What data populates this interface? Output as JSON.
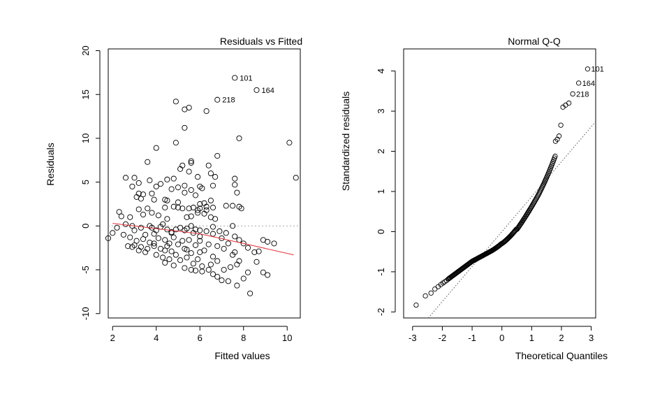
{
  "chart_data": [
    {
      "type": "scatter",
      "title": "Residuals vs Fitted",
      "xlabel": "Fitted values",
      "ylabel": "Residuals",
      "xlim": [
        1.8,
        10.6
      ],
      "ylim": [
        -10.5,
        20.2
      ],
      "xticks": [
        2,
        4,
        6,
        8,
        10
      ],
      "yticks": [
        -10,
        -5,
        0,
        5,
        10,
        15,
        20
      ],
      "reference_line": 0,
      "smooth_line": [
        [
          2.0,
          0.3
        ],
        [
          4.0,
          -0.3
        ],
        [
          6.0,
          -0.9
        ],
        [
          8.0,
          -2.0
        ],
        [
          10.3,
          -3.3
        ]
      ],
      "labeled_points": [
        {
          "label": "101",
          "x": 7.6,
          "y": 16.9
        },
        {
          "label": "164",
          "x": 8.6,
          "y": 15.5
        },
        {
          "label": "218",
          "x": 6.8,
          "y": 14.4
        }
      ],
      "points": [
        [
          7.6,
          16.9
        ],
        [
          8.6,
          15.5
        ],
        [
          6.8,
          14.4
        ],
        [
          4.9,
          14.2
        ],
        [
          5.5,
          13.5
        ],
        [
          5.3,
          13.3
        ],
        [
          6.3,
          13.1
        ],
        [
          5.3,
          11.2
        ],
        [
          7.8,
          10.0
        ],
        [
          10.1,
          9.5
        ],
        [
          4.9,
          9.5
        ],
        [
          4.0,
          8.9
        ],
        [
          6.8,
          8.0
        ],
        [
          3.6,
          7.3
        ],
        [
          5.6,
          7.4
        ],
        [
          5.6,
          7.2
        ],
        [
          5.2,
          6.9
        ],
        [
          5.1,
          6.5
        ],
        [
          6.4,
          6.9
        ],
        [
          5.5,
          6.2
        ],
        [
          6.5,
          6.0
        ],
        [
          2.6,
          5.5
        ],
        [
          3.0,
          5.5
        ],
        [
          3.7,
          5.2
        ],
        [
          4.8,
          5.4
        ],
        [
          5.9,
          5.6
        ],
        [
          6.7,
          5.6
        ],
        [
          7.6,
          5.4
        ],
        [
          10.4,
          5.5
        ],
        [
          3.2,
          4.9
        ],
        [
          4.0,
          4.5
        ],
        [
          4.2,
          4.8
        ],
        [
          4.5,
          5.3
        ],
        [
          4.7,
          4.2
        ],
        [
          5.0,
          4.4
        ],
        [
          5.3,
          4.6
        ],
        [
          6.0,
          4.5
        ],
        [
          6.1,
          4.3
        ],
        [
          6.6,
          4.6
        ],
        [
          7.6,
          4.7
        ],
        [
          2.9,
          4.5
        ],
        [
          3.2,
          3.7
        ],
        [
          3.4,
          3.6
        ],
        [
          3.8,
          3.7
        ],
        [
          5.3,
          3.8
        ],
        [
          5.8,
          3.5
        ],
        [
          5.6,
          4.1
        ],
        [
          7.7,
          3.8
        ],
        [
          3.1,
          3.3
        ],
        [
          3.3,
          3.1
        ],
        [
          3.9,
          3.0
        ],
        [
          4.4,
          3.0
        ],
        [
          4.5,
          2.9
        ],
        [
          6.5,
          2.9
        ],
        [
          5.0,
          2.7
        ],
        [
          6.0,
          2.5
        ],
        [
          6.2,
          2.6
        ],
        [
          6.0,
          2.0
        ],
        [
          6.3,
          2.2
        ],
        [
          7.2,
          2.3
        ],
        [
          7.5,
          2.3
        ],
        [
          7.8,
          2.2
        ],
        [
          7.9,
          2.0
        ],
        [
          3.2,
          1.9
        ],
        [
          3.6,
          2.0
        ],
        [
          4.4,
          2.1
        ],
        [
          4.8,
          2.2
        ],
        [
          5.0,
          2.1
        ],
        [
          5.2,
          2.0
        ],
        [
          5.5,
          2.0
        ],
        [
          5.7,
          2.1
        ],
        [
          5.9,
          1.8
        ],
        [
          6.3,
          1.8
        ],
        [
          6.6,
          2.1
        ],
        [
          2.3,
          1.6
        ],
        [
          2.4,
          1.1
        ],
        [
          2.8,
          1.0
        ],
        [
          3.4,
          1.3
        ],
        [
          3.8,
          1.5
        ],
        [
          4.1,
          1.2
        ],
        [
          4.5,
          0.8
        ],
        [
          5.4,
          1.0
        ],
        [
          5.6,
          1.1
        ],
        [
          5.9,
          1.5
        ],
        [
          6.2,
          1.4
        ],
        [
          6.5,
          1.0
        ],
        [
          6.7,
          0.8
        ],
        [
          2.0,
          -0.8
        ],
        [
          2.2,
          -0.2
        ],
        [
          2.6,
          0.2
        ],
        [
          2.9,
          0.0
        ],
        [
          3.0,
          -0.5
        ],
        [
          3.3,
          -0.2
        ],
        [
          3.5,
          -1.0
        ],
        [
          3.7,
          0.0
        ],
        [
          3.8,
          -0.2
        ],
        [
          4.0,
          -0.5
        ],
        [
          4.2,
          -0.1
        ],
        [
          4.3,
          0.2
        ],
        [
          4.5,
          -0.4
        ],
        [
          4.7,
          -0.7
        ],
        [
          4.9,
          -0.4
        ],
        [
          5.1,
          -0.2
        ],
        [
          5.3,
          -0.5
        ],
        [
          5.6,
          0.0
        ],
        [
          5.8,
          -0.4
        ],
        [
          6.0,
          -0.5
        ],
        [
          6.3,
          -0.6
        ],
        [
          6.6,
          -0.1
        ],
        [
          6.9,
          -0.6
        ],
        [
          7.2,
          -0.8
        ],
        [
          7.5,
          0.0
        ],
        [
          1.8,
          -1.4
        ],
        [
          2.5,
          -1.0
        ],
        [
          2.8,
          -1.3
        ],
        [
          3.0,
          -2.2
        ],
        [
          3.1,
          -1.7
        ],
        [
          3.3,
          -2.4
        ],
        [
          3.4,
          -1.5
        ],
        [
          3.6,
          -2.6
        ],
        [
          3.7,
          -1.9
        ],
        [
          3.9,
          -2.3
        ],
        [
          4.1,
          -1.4
        ],
        [
          4.2,
          -2.6
        ],
        [
          4.4,
          -1.6
        ],
        [
          4.6,
          -2.0
        ],
        [
          4.7,
          -2.9
        ],
        [
          4.8,
          -1.3
        ],
        [
          5.0,
          -2.1
        ],
        [
          5.2,
          -1.7
        ],
        [
          5.3,
          -2.6
        ],
        [
          5.5,
          -1.6
        ],
        [
          5.6,
          -3.1
        ],
        [
          5.8,
          -2.2
        ],
        [
          6.0,
          -1.7
        ],
        [
          6.2,
          -2.8
        ],
        [
          6.4,
          -2.1
        ],
        [
          6.6,
          -3.5
        ],
        [
          6.8,
          -2.3
        ],
        [
          7.0,
          -1.4
        ],
        [
          7.1,
          -2.6
        ],
        [
          7.3,
          -2.0
        ],
        [
          7.6,
          -3.0
        ],
        [
          7.8,
          -1.6
        ],
        [
          8.0,
          -2.0
        ],
        [
          8.2,
          -2.5
        ],
        [
          8.5,
          -3.0
        ],
        [
          8.7,
          -2.9
        ],
        [
          8.9,
          -1.6
        ],
        [
          9.1,
          -1.8
        ],
        [
          9.4,
          -2.0
        ],
        [
          3.2,
          -2.8
        ],
        [
          3.5,
          -3.0
        ],
        [
          4.0,
          -3.3
        ],
        [
          4.3,
          -3.6
        ],
        [
          4.6,
          -3.8
        ],
        [
          4.9,
          -3.3
        ],
        [
          5.1,
          -3.9
        ],
        [
          5.4,
          -3.6
        ],
        [
          5.7,
          -4.3
        ],
        [
          5.9,
          -3.8
        ],
        [
          6.1,
          -4.6
        ],
        [
          6.5,
          -4.4
        ],
        [
          6.8,
          -4.0
        ],
        [
          7.1,
          -5.0
        ],
        [
          7.4,
          -4.7
        ],
        [
          7.7,
          -4.4
        ],
        [
          8.2,
          -5.3
        ],
        [
          8.6,
          -4.1
        ],
        [
          8.9,
          -5.3
        ],
        [
          9.1,
          -5.6
        ],
        [
          4.4,
          -4.2
        ],
        [
          4.8,
          -4.5
        ],
        [
          5.3,
          -4.8
        ],
        [
          5.6,
          -5.0
        ],
        [
          5.8,
          -5.1
        ],
        [
          6.1,
          -5.2
        ],
        [
          6.4,
          -5.0
        ],
        [
          6.6,
          -5.5
        ],
        [
          6.8,
          -5.8
        ],
        [
          7.0,
          -6.2
        ],
        [
          7.3,
          -6.3
        ],
        [
          7.7,
          -6.8
        ],
        [
          8.0,
          -6.0
        ],
        [
          8.3,
          -7.7
        ],
        [
          7.8,
          -4.0
        ],
        [
          7.6,
          -1.2
        ],
        [
          2.7,
          -2.3
        ],
        [
          4.4,
          -2.8
        ],
        [
          5.4,
          -2.7
        ],
        [
          6.0,
          -3.0
        ],
        [
          4.5,
          -2.3
        ],
        [
          7.5,
          -3.3
        ],
        [
          6.6,
          -0.9
        ],
        [
          6.0,
          -1.2
        ],
        [
          5.4,
          -0.3
        ],
        [
          3.9,
          -0.9
        ],
        [
          4.7,
          -0.8
        ],
        [
          2.9,
          -2.4
        ],
        [
          3.9,
          -2.0
        ],
        [
          5.7,
          -0.8
        ]
      ]
    },
    {
      "type": "scatter",
      "title": "Normal Q-Q",
      "xlabel": "Theoretical Quantiles",
      "ylabel": "Standardized residuals",
      "xlim": [
        -3.3,
        3.15
      ],
      "ylim": [
        -2.15,
        4.55
      ],
      "xticks": [
        -3,
        -2,
        -1,
        0,
        1,
        2,
        3
      ],
      "yticks": [
        -2,
        -1,
        0,
        1,
        2,
        3,
        4
      ],
      "reference_line": {
        "intercept": 0.0,
        "slope": 0.87
      },
      "labeled_points": [
        {
          "label": "101",
          "x": 2.88,
          "y": 4.05
        },
        {
          "label": "164",
          "x": 2.58,
          "y": 3.7
        },
        {
          "label": "218",
          "x": 2.38,
          "y": 3.43
        }
      ],
      "tail_points_low": [
        [
          -2.88,
          -1.83
        ],
        [
          -2.57,
          -1.6
        ],
        [
          -2.38,
          -1.53
        ],
        [
          -2.25,
          -1.43
        ],
        [
          -2.14,
          -1.37
        ],
        [
          -2.05,
          -1.32
        ],
        [
          -1.98,
          -1.28
        ],
        [
          -1.92,
          -1.25
        ],
        [
          -1.86,
          -1.22
        ],
        [
          -1.8,
          -1.18
        ]
      ],
      "tail_points_high": [
        [
          1.8,
          2.25
        ],
        [
          1.86,
          2.3
        ],
        [
          1.92,
          2.38
        ],
        [
          1.98,
          2.65
        ],
        [
          2.05,
          3.1
        ],
        [
          2.14,
          3.15
        ],
        [
          2.25,
          3.2
        ],
        [
          2.38,
          3.43
        ],
        [
          2.58,
          3.7
        ],
        [
          2.88,
          4.05
        ]
      ]
    }
  ]
}
